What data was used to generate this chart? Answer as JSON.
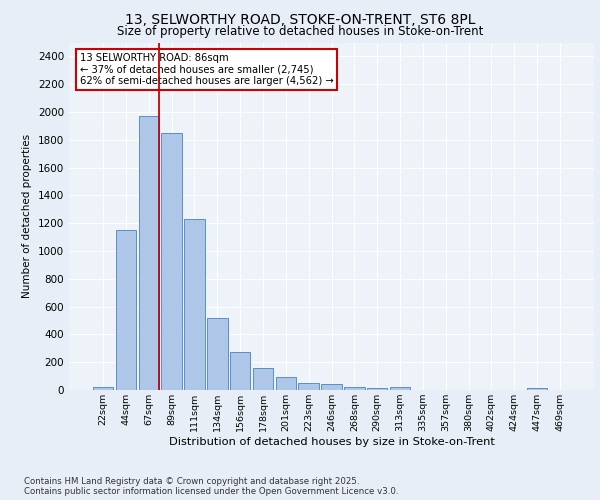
{
  "title_line1": "13, SELWORTHY ROAD, STOKE-ON-TRENT, ST6 8PL",
  "title_line2": "Size of property relative to detached houses in Stoke-on-Trent",
  "xlabel": "Distribution of detached houses by size in Stoke-on-Trent",
  "ylabel": "Number of detached properties",
  "categories": [
    "22sqm",
    "44sqm",
    "67sqm",
    "89sqm",
    "111sqm",
    "134sqm",
    "156sqm",
    "178sqm",
    "201sqm",
    "223sqm",
    "246sqm",
    "268sqm",
    "290sqm",
    "313sqm",
    "335sqm",
    "357sqm",
    "380sqm",
    "402sqm",
    "424sqm",
    "447sqm",
    "469sqm"
  ],
  "values": [
    25,
    1150,
    1970,
    1850,
    1230,
    520,
    270,
    155,
    90,
    50,
    40,
    20,
    15,
    20,
    0,
    0,
    0,
    0,
    0,
    15,
    0
  ],
  "bar_color": "#aec6e8",
  "bar_edge_color": "#5b8fc9",
  "vline_color": "#cc0000",
  "annotation_text": "13 SELWORTHY ROAD: 86sqm\n← 37% of detached houses are smaller (2,745)\n62% of semi-detached houses are larger (4,562) →",
  "annotation_box_color": "#ffffff",
  "annotation_box_edgecolor": "#cc0000",
  "ylim": [
    0,
    2500
  ],
  "yticks": [
    0,
    200,
    400,
    600,
    800,
    1000,
    1200,
    1400,
    1600,
    1800,
    2000,
    2200,
    2400
  ],
  "bg_color": "#e8eef7",
  "plot_bg_color": "#eef2f9",
  "grid_color": "#ffffff",
  "footer_line1": "Contains HM Land Registry data © Crown copyright and database right 2025.",
  "footer_line2": "Contains public sector information licensed under the Open Government Licence v3.0."
}
